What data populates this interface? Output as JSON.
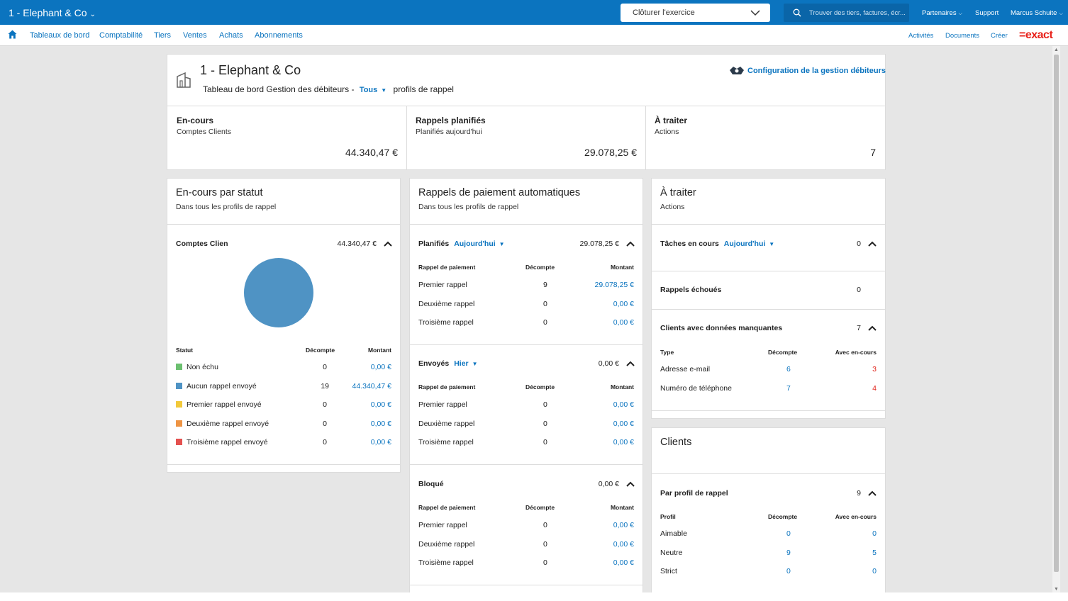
{
  "topbar": {
    "company": "1 - Elephant & Co",
    "close_select": "Clôturer l'exercice",
    "search_placeholder": "Trouver des tiers, factures, écr...",
    "partners": "Partenaires",
    "support": "Support",
    "user": "Marcus Schuite"
  },
  "menu": {
    "items": [
      "Tableaux de bord",
      "Comptabilité",
      "Tiers",
      "Ventes",
      "Achats",
      "Abonnements"
    ],
    "right": [
      "Activités",
      "Documents",
      "Créer"
    ],
    "logo": "=exact"
  },
  "header": {
    "title": "1 - Elephant & Co",
    "subtitle_prefix": "Tableau de bord Gestion des débiteurs -",
    "profile_filter": "Tous",
    "subtitle_suffix": "profils de rappel",
    "config_link": "Configuration de la gestion débiteurs"
  },
  "kpis": [
    {
      "title": "En-cours",
      "subtitle": "Comptes Clients",
      "value": "44.340,47 €"
    },
    {
      "title": "Rappels planifiés",
      "subtitle": "Planifiés aujourd'hui",
      "value": "29.078,25 €"
    },
    {
      "title": "À traiter",
      "subtitle": "Actions",
      "value": "7"
    }
  ],
  "status_card": {
    "title": "En-cours par statut",
    "subtitle": "Dans tous les profils de rappel",
    "section_label": "Comptes Clien",
    "section_total": "44.340,47 €",
    "headers": [
      "Statut",
      "Décompte",
      "Montant"
    ],
    "rows": [
      {
        "label": "Non échu",
        "count": "0",
        "amount": "0,00 €",
        "color": "#6cc070"
      },
      {
        "label": "Aucun rappel envoyé",
        "count": "19",
        "amount": "44.340,47 €",
        "color": "#4f93c4"
      },
      {
        "label": "Premier rappel envoyé",
        "count": "0",
        "amount": "0,00 €",
        "color": "#f2c93a"
      },
      {
        "label": "Deuxième rappel envoyé",
        "count": "0",
        "amount": "0,00 €",
        "color": "#ee9444"
      },
      {
        "label": "Troisième rappel envoyé",
        "count": "0",
        "amount": "0,00 €",
        "color": "#e4514f"
      }
    ],
    "chart_data": {
      "type": "pie",
      "categories": [
        "Non échu",
        "Aucun rappel envoyé",
        "Premier rappel envoyé",
        "Deuxième rappel envoyé",
        "Troisième rappel envoyé"
      ],
      "values": [
        0,
        44340.47,
        0,
        0,
        0
      ]
    }
  },
  "reminders_card": {
    "title": "Rappels de paiement automatiques",
    "subtitle": "Dans tous les profils de rappel",
    "headers": [
      "Rappel de paiement",
      "Décompte",
      "Montant"
    ],
    "sections": [
      {
        "label": "Planifiés",
        "filter": "Aujourd'hui",
        "total": "29.078,25 €",
        "rows": [
          {
            "label": "Premier rappel",
            "count": "9",
            "amount": "29.078,25 €"
          },
          {
            "label": "Deuxième rappel",
            "count": "0",
            "amount": "0,00 €"
          },
          {
            "label": "Troisième rappel",
            "count": "0",
            "amount": "0,00 €"
          }
        ]
      },
      {
        "label": "Envoyés",
        "filter": "Hier",
        "total": "0,00 €",
        "rows": [
          {
            "label": "Premier rappel",
            "count": "0",
            "amount": "0,00 €"
          },
          {
            "label": "Deuxième rappel",
            "count": "0",
            "amount": "0,00 €"
          },
          {
            "label": "Troisième rappel",
            "count": "0",
            "amount": "0,00 €"
          }
        ]
      },
      {
        "label": "Bloqué",
        "filter": "",
        "total": "0,00 €",
        "rows": [
          {
            "label": "Premier rappel",
            "count": "0",
            "amount": "0,00 €"
          },
          {
            "label": "Deuxième rappel",
            "count": "0",
            "amount": "0,00 €"
          },
          {
            "label": "Troisième rappel",
            "count": "0",
            "amount": "0,00 €"
          }
        ]
      }
    ]
  },
  "todo_card": {
    "title": "À traiter",
    "subtitle": "Actions",
    "tasks_label": "Tâches en cours",
    "tasks_filter": "Aujourd'hui",
    "tasks_count": "0",
    "failed_label": "Rappels échoués",
    "failed_count": "0",
    "missing_label": "Clients avec données manquantes",
    "missing_count": "7",
    "headers": [
      "Type",
      "Décompte",
      "Avec en-cours"
    ],
    "rows": [
      {
        "label": "Adresse e-mail",
        "count": "6",
        "with": "3"
      },
      {
        "label": "Numéro de téléphone",
        "count": "7",
        "with": "4"
      }
    ]
  },
  "clients_card": {
    "title": "Clients",
    "section_label": "Par profil de rappel",
    "section_count": "9",
    "headers": [
      "Profil",
      "Décompte",
      "Avec en-cours"
    ],
    "rows": [
      {
        "label": "Aimable",
        "count": "0",
        "with": "0"
      },
      {
        "label": "Neutre",
        "count": "9",
        "with": "5"
      },
      {
        "label": "Strict",
        "count": "0",
        "with": "0"
      }
    ]
  }
}
